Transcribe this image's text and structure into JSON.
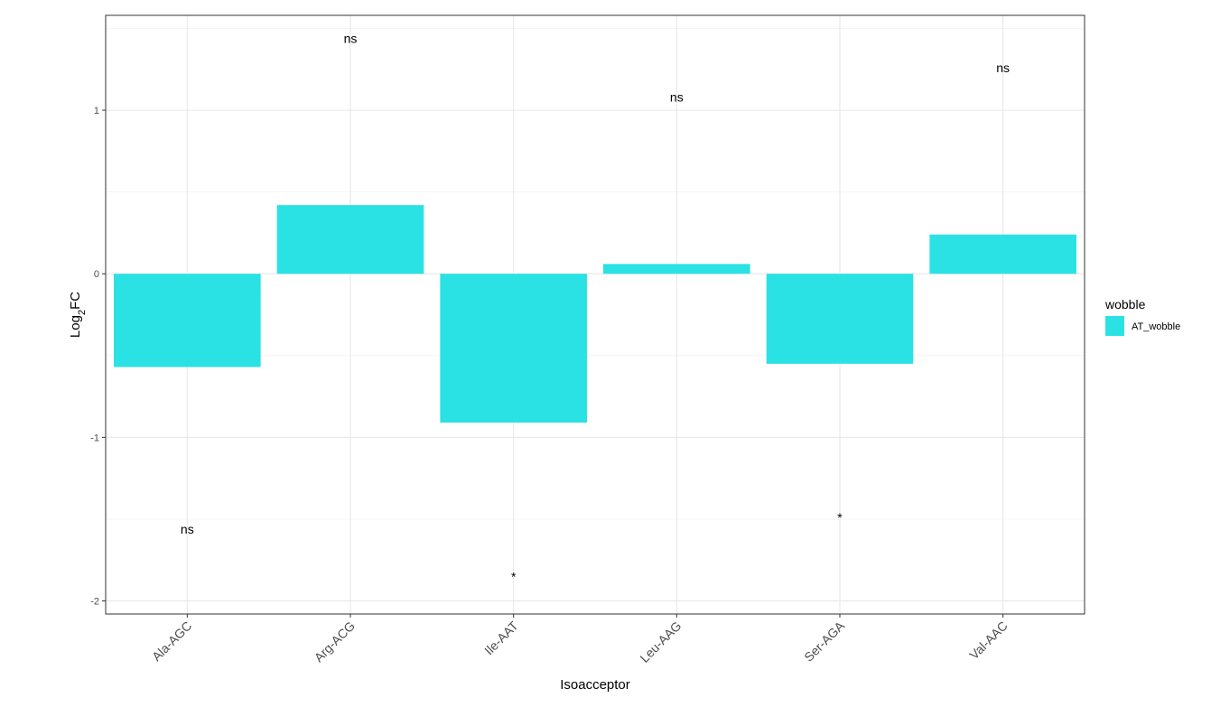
{
  "chart_data": {
    "type": "bar",
    "categories": [
      "Ala-AGC",
      "Arg-ACG",
      "Ile-AAT",
      "Leu-AAG",
      "Ser-AGA",
      "Val-AAC"
    ],
    "series": [
      {
        "name": "AT_wobble",
        "values": [
          -0.57,
          0.42,
          -0.91,
          0.06,
          -0.55,
          0.24
        ],
        "color": "#2ae2e4"
      }
    ],
    "annotations": [
      {
        "category": "Ala-AGC",
        "text": "ns",
        "y": -1.56
      },
      {
        "category": "Arg-ACG",
        "text": "ns",
        "y": 1.44
      },
      {
        "category": "Ile-AAT",
        "text": "*",
        "y": -1.85
      },
      {
        "category": "Leu-AAG",
        "text": "ns",
        "y": 1.08
      },
      {
        "category": "Ser-AGA",
        "text": "*",
        "y": -1.49
      },
      {
        "category": "Val-AAC",
        "text": "ns",
        "y": 1.26
      }
    ],
    "xlabel": "Isoacceptor",
    "ylabel_main": "Log",
    "ylabel_sub": "2",
    "ylabel_tail": "FC",
    "ylim": [
      -2.08,
      1.58
    ],
    "yticks": [
      -2,
      -1,
      0,
      1
    ],
    "ytick_labels": [
      "-2",
      "-1",
      "0",
      "1"
    ],
    "grid": true,
    "legend": {
      "title": "wobble",
      "position": "right",
      "label": "AT_wobble"
    }
  }
}
